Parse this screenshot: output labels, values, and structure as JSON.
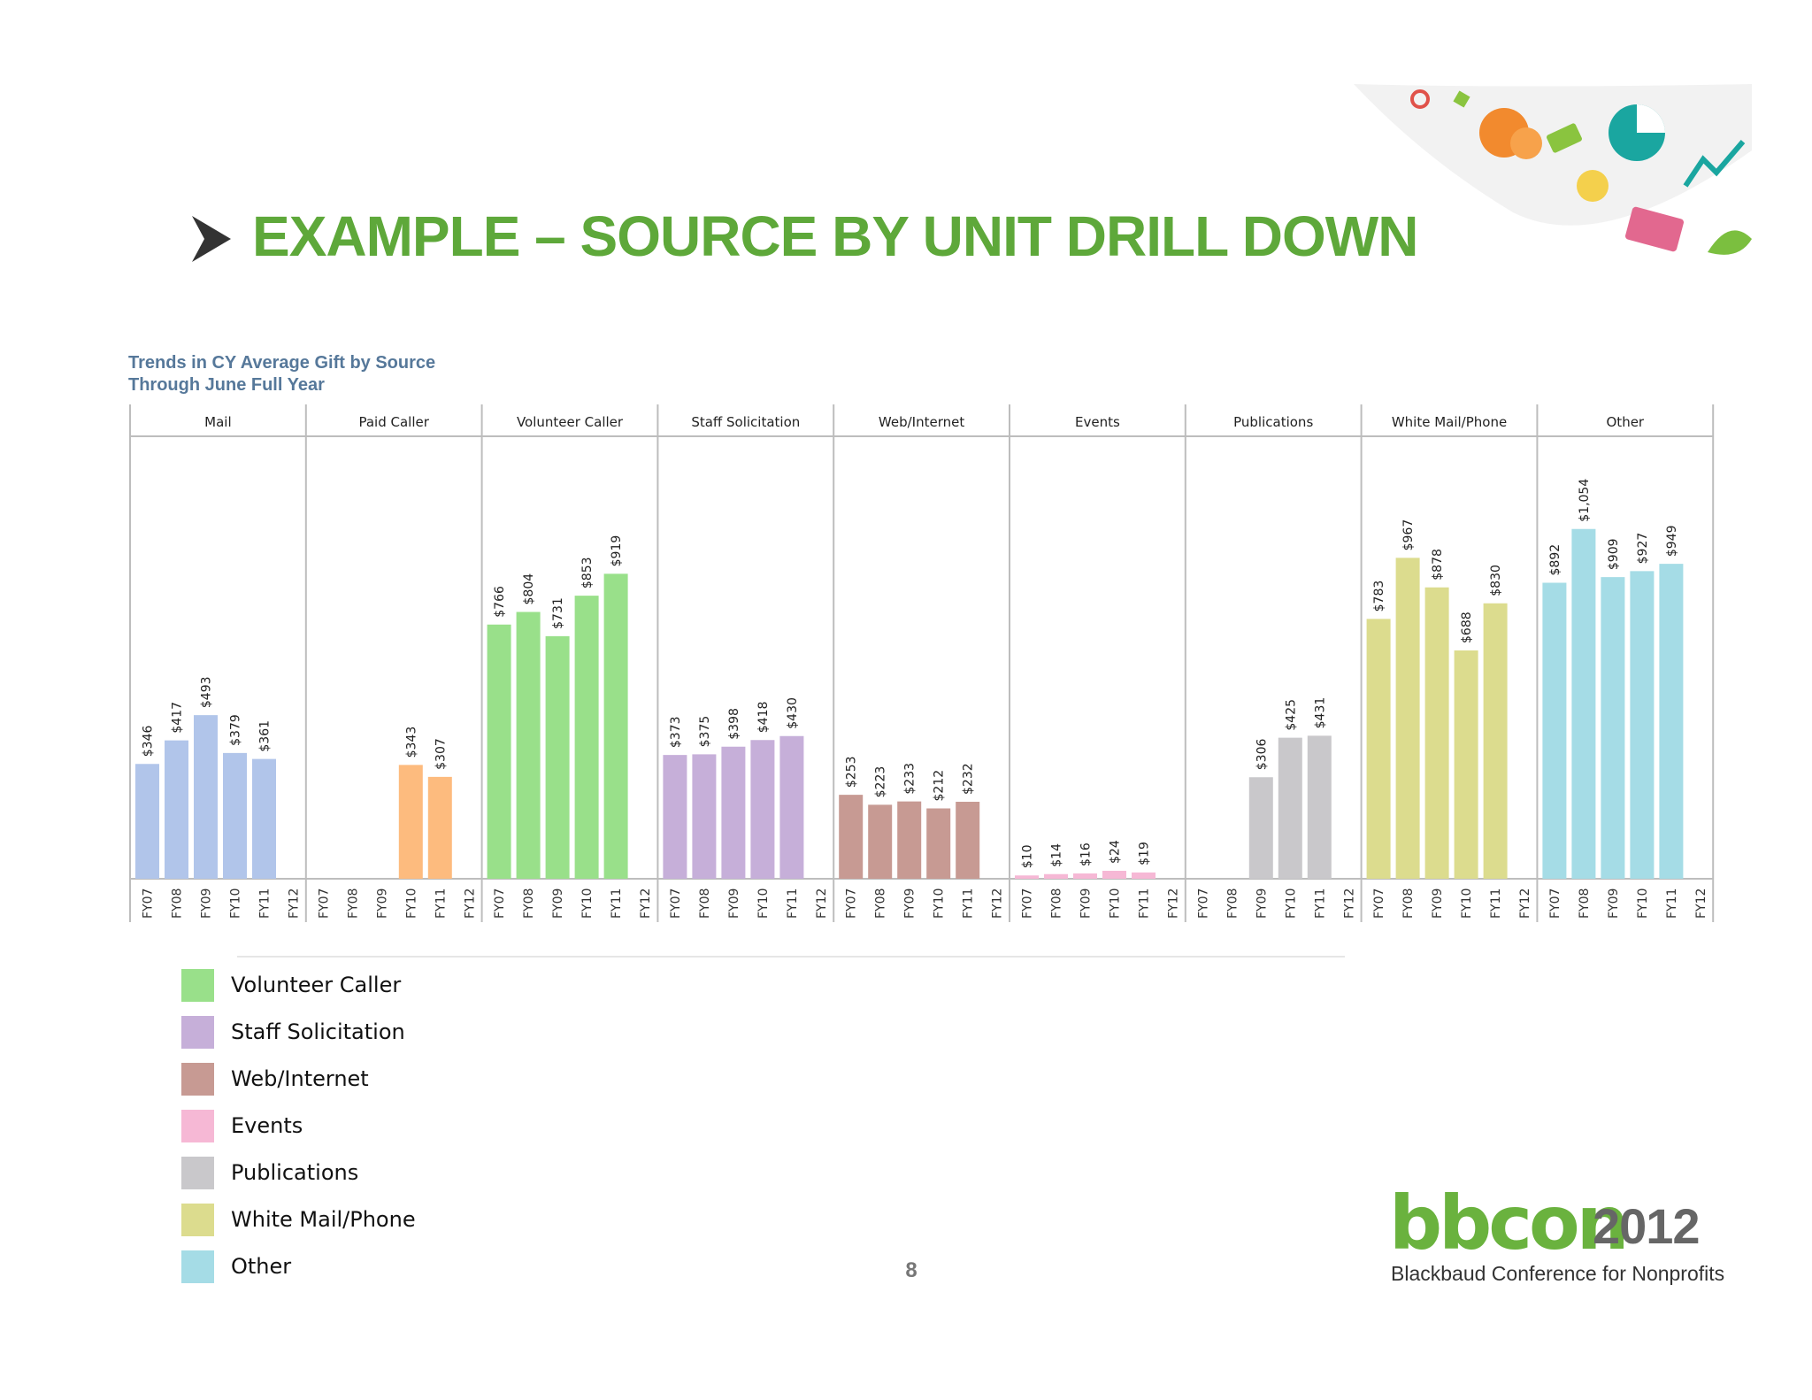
{
  "slide": {
    "title": "EXAMPLE – SOURCE BY UNIT DRILL DOWN",
    "page_number": "8",
    "accent_color": "#5ea83a"
  },
  "logo": {
    "wordmark": "bbcon",
    "year": "2012",
    "tagline": "Blackbaud Conference for Nonprofits"
  },
  "chart_data": {
    "type": "bar",
    "title": "Trends in CY Average Gift by Source",
    "subtitle": "Through June Full Year",
    "categories": [
      "FY07",
      "FY08",
      "FY09",
      "FY10",
      "FY11",
      "FY12"
    ],
    "ylim": [
      0,
      1200
    ],
    "grid": false,
    "legend_position": "bottom-left",
    "series": [
      {
        "name": "Mail",
        "color": "#b1c5ea",
        "values": [
          346,
          417,
          493,
          379,
          361,
          null
        ],
        "labels": [
          "$346",
          "$417",
          "$493",
          "$379",
          "$361",
          ""
        ]
      },
      {
        "name": "Paid Caller",
        "color": "#fdbb7e",
        "values": [
          null,
          null,
          null,
          343,
          307,
          null
        ],
        "labels": [
          "",
          "",
          "",
          "$343",
          "$307",
          ""
        ]
      },
      {
        "name": "Volunteer Caller",
        "color": "#99e08a",
        "values": [
          766,
          804,
          731,
          853,
          919,
          null
        ],
        "labels": [
          "$766",
          "$804",
          "$731",
          "$853",
          "$919",
          ""
        ]
      },
      {
        "name": "Staff Solicitation",
        "color": "#c6afd9",
        "values": [
          373,
          375,
          398,
          418,
          430,
          null
        ],
        "labels": [
          "$373",
          "$375",
          "$398",
          "$418",
          "$430",
          ""
        ]
      },
      {
        "name": "Web/Internet",
        "color": "#c79a93",
        "values": [
          253,
          223,
          233,
          212,
          232,
          null
        ],
        "labels": [
          "$253",
          "$223",
          "$233",
          "$212",
          "$232",
          ""
        ]
      },
      {
        "name": "Events",
        "color": "#f6b8d5",
        "values": [
          10,
          14,
          16,
          24,
          19,
          null
        ],
        "labels": [
          "$10",
          "$14",
          "$16",
          "$24",
          "$19",
          ""
        ]
      },
      {
        "name": "Publications",
        "color": "#c9c8cb",
        "values": [
          null,
          null,
          306,
          425,
          431,
          null
        ],
        "labels": [
          "",
          "",
          "$306",
          "$425",
          "$431",
          ""
        ]
      },
      {
        "name": "White Mail/Phone",
        "color": "#dcdc8e",
        "values": [
          783,
          967,
          878,
          688,
          830,
          null
        ],
        "labels": [
          "$783",
          "$967",
          "$878",
          "$688",
          "$830",
          ""
        ]
      },
      {
        "name": "Other",
        "color": "#a5dce6",
        "values": [
          892,
          1054,
          909,
          927,
          949,
          null
        ],
        "labels": [
          "$892",
          "$1,054",
          "$909",
          "$927",
          "$949",
          ""
        ]
      }
    ],
    "legend": [
      {
        "label": "Volunteer Caller",
        "color": "#99e08a"
      },
      {
        "label": "Staff Solicitation",
        "color": "#c6afd9"
      },
      {
        "label": "Web/Internet",
        "color": "#c79a93"
      },
      {
        "label": "Events",
        "color": "#f6b8d5"
      },
      {
        "label": "Publications",
        "color": "#c9c8cb"
      },
      {
        "label": "White Mail/Phone",
        "color": "#dcdc8e"
      },
      {
        "label": "Other",
        "color": "#a5dce6"
      }
    ]
  }
}
